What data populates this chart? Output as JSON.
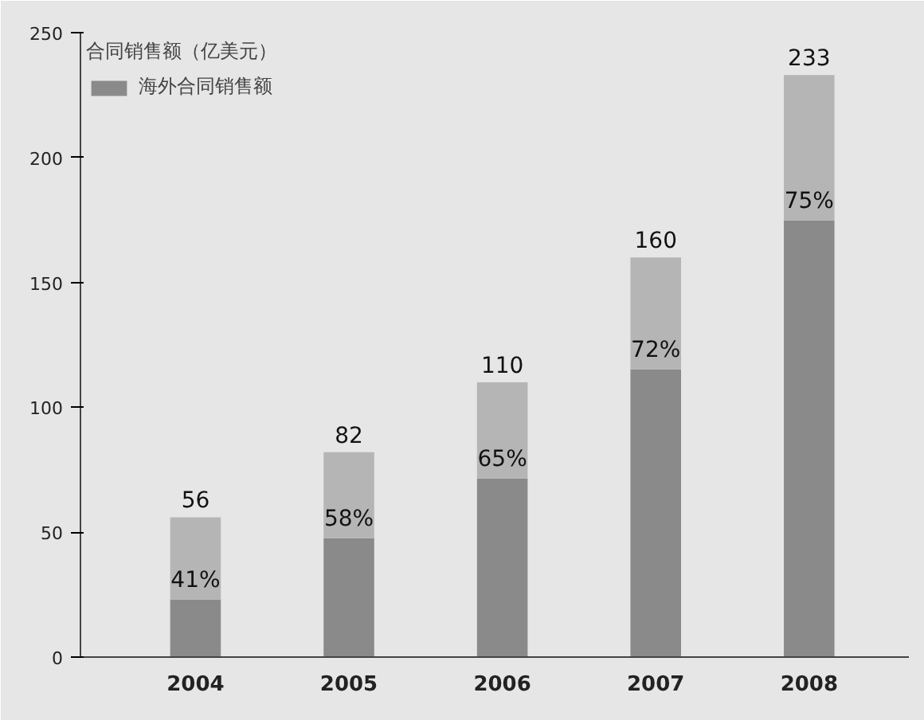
{
  "chart_data": {
    "type": "bar",
    "stacked": true,
    "categories": [
      "2004",
      "2005",
      "2006",
      "2007",
      "2008"
    ],
    "legend_title": "合同销售额（亿美元）",
    "legend": "top left",
    "ylim": [
      0,
      250
    ],
    "yticks": [
      0,
      50,
      100,
      150,
      200,
      250
    ],
    "series": [
      {
        "name": "海外合同销售额",
        "color": "#8a8a8a",
        "values": [
          23.0,
          47.6,
          71.5,
          115.2,
          174.8
        ]
      },
      {
        "color": "#b5b5b5",
        "values": [
          33.0,
          34.4,
          38.5,
          44.8,
          58.2
        ]
      }
    ],
    "totals": [
      "56",
      "82",
      "110",
      "160",
      "233"
    ],
    "annotations": [
      {
        "text": "41%",
        "x": "2004",
        "y": 23.0
      },
      {
        "text": "58%",
        "x": "2005",
        "y": 47.6
      },
      {
        "text": "65%",
        "x": "2006",
        "y": 71.5
      },
      {
        "text": "72%",
        "x": "2007",
        "y": 115.2
      },
      {
        "text": "75%",
        "x": "2008",
        "y": 174.8
      }
    ]
  }
}
